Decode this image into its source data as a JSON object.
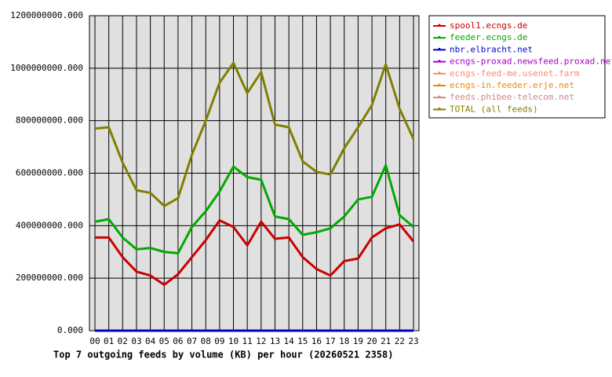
{
  "chart_data": {
    "type": "line",
    "title": "Top 7 outgoing feeds by volume (KB) per hour (20260521 2358)",
    "categories": [
      "00",
      "01",
      "02",
      "03",
      "04",
      "05",
      "06",
      "07",
      "08",
      "09",
      "10",
      "11",
      "12",
      "13",
      "14",
      "15",
      "16",
      "17",
      "18",
      "19",
      "20",
      "21",
      "22",
      "23"
    ],
    "ylim": [
      0,
      1200000000
    ],
    "yticks": [
      {
        "value": 0,
        "label": "0.000"
      },
      {
        "value": 200000000,
        "label": "200000000.000"
      },
      {
        "value": 400000000,
        "label": "400000000.000"
      },
      {
        "value": 600000000,
        "label": "600000000.000"
      },
      {
        "value": 800000000,
        "label": "800000000.000"
      },
      {
        "value": 1000000000,
        "label": "1000000000.000"
      },
      {
        "value": 1200000000,
        "label": "1200000000.000"
      }
    ],
    "grid": true,
    "legend": "right",
    "series": [
      {
        "name": "spool1.ecngs.de",
        "color": "#cc0000",
        "values": [
          355000000,
          355000000,
          280000000,
          225000000,
          210000000,
          175000000,
          215000000,
          280000000,
          345000000,
          420000000,
          395000000,
          325000000,
          415000000,
          350000000,
          355000000,
          280000000,
          235000000,
          210000000,
          265000000,
          275000000,
          355000000,
          390000000,
          405000000,
          340000000
        ]
      },
      {
        "name": "feeder.ecngs.de",
        "color": "#00aa00",
        "values": [
          415000000,
          425000000,
          355000000,
          310000000,
          315000000,
          300000000,
          295000000,
          395000000,
          455000000,
          530000000,
          625000000,
          585000000,
          575000000,
          435000000,
          425000000,
          365000000,
          375000000,
          390000000,
          435000000,
          500000000,
          510000000,
          630000000,
          440000000,
          395000000
        ]
      },
      {
        "name": "nbr.elbracht.net",
        "color": "#0000cc",
        "values": [
          0,
          0,
          0,
          0,
          0,
          0,
          0,
          0,
          0,
          0,
          0,
          0,
          0,
          0,
          0,
          0,
          0,
          0,
          0,
          0,
          0,
          0,
          0,
          0
        ]
      },
      {
        "name": "ecngs-proxad.newsfeed.proxad.net",
        "color": "#aa00cc",
        "values": [
          0,
          0,
          0,
          0,
          0,
          0,
          0,
          0,
          0,
          0,
          0,
          0,
          0,
          0,
          0,
          0,
          0,
          0,
          0,
          0,
          0,
          0,
          0,
          0
        ]
      },
      {
        "name": "ecngs-feed-me.usenet.farm",
        "color": "#ff8866",
        "values": [
          0,
          0,
          0,
          0,
          0,
          0,
          0,
          0,
          0,
          0,
          0,
          0,
          0,
          0,
          0,
          0,
          0,
          0,
          0,
          0,
          0,
          0,
          0,
          0
        ]
      },
      {
        "name": "ecngs-in.feeder.erje.net",
        "color": "#ee8800",
        "values": [
          0,
          0,
          0,
          0,
          0,
          0,
          0,
          0,
          0,
          0,
          0,
          0,
          0,
          0,
          0,
          0,
          0,
          0,
          0,
          0,
          0,
          0,
          0,
          0
        ]
      },
      {
        "name": "feeds.phibee-telecom.net",
        "color": "#cc8888",
        "values": [
          0,
          0,
          0,
          0,
          0,
          0,
          0,
          0,
          0,
          0,
          0,
          0,
          0,
          0,
          0,
          0,
          0,
          0,
          0,
          0,
          0,
          0,
          0,
          0
        ]
      },
      {
        "name": "TOTAL (all feeds)",
        "color": "#808000",
        "values": [
          770000000,
          775000000,
          640000000,
          535000000,
          525000000,
          475000000,
          505000000,
          670000000,
          800000000,
          945000000,
          1020000000,
          905000000,
          985000000,
          785000000,
          775000000,
          645000000,
          605000000,
          595000000,
          695000000,
          775000000,
          860000000,
          1015000000,
          845000000,
          730000000
        ]
      }
    ]
  }
}
